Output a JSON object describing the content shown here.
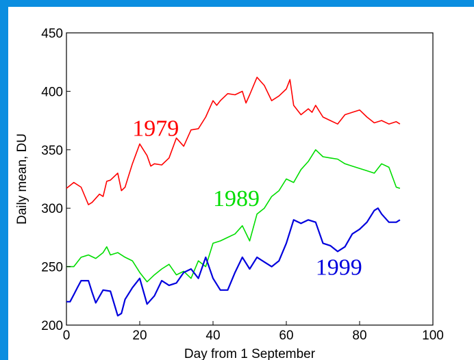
{
  "chart_data": {
    "type": "line",
    "title": "",
    "xlabel": "Day from 1 September",
    "ylabel": "Daily mean, DU",
    "xlim": [
      0,
      100
    ],
    "ylim": [
      200,
      450
    ],
    "xticks": [
      0,
      20,
      40,
      60,
      80,
      100
    ],
    "yticks": [
      200,
      250,
      300,
      350,
      400,
      450
    ],
    "grid": false,
    "legend": "none",
    "series": [
      {
        "name": "1979",
        "color": "#ff0000",
        "x": [
          0,
          2,
          4,
          6,
          7,
          9,
          10,
          11,
          12,
          14,
          15,
          16,
          17,
          18,
          20,
          21,
          22,
          23,
          24,
          26,
          28,
          30,
          32,
          34,
          36,
          38,
          40,
          41,
          42,
          44,
          46,
          48,
          49,
          50,
          52,
          54,
          56,
          58,
          60,
          61,
          62,
          64,
          66,
          67,
          68,
          70,
          72,
          74,
          76,
          78,
          80,
          82,
          84,
          86,
          88,
          90,
          91
        ],
        "y": [
          317,
          322,
          318,
          303,
          305,
          312,
          310,
          323,
          324,
          330,
          315,
          318,
          328,
          338,
          355,
          350,
          345,
          336,
          338,
          337,
          343,
          360,
          353,
          367,
          368,
          378,
          392,
          388,
          392,
          398,
          397,
          400,
          390,
          397,
          412,
          405,
          392,
          396,
          402,
          410,
          388,
          380,
          385,
          382,
          388,
          378,
          375,
          372,
          380,
          382,
          384,
          378,
          373,
          375,
          372,
          374,
          372
        ]
      },
      {
        "name": "1989",
        "color": "#00dd00",
        "x": [
          0,
          2,
          4,
          6,
          8,
          10,
          11,
          12,
          14,
          16,
          18,
          20,
          22,
          24,
          26,
          28,
          30,
          32,
          34,
          36,
          38,
          40,
          42,
          44,
          46,
          48,
          50,
          52,
          54,
          56,
          58,
          60,
          62,
          64,
          66,
          68,
          70,
          72,
          74,
          76,
          78,
          80,
          82,
          84,
          86,
          88,
          90,
          91
        ],
        "y": [
          250,
          250,
          258,
          260,
          257,
          262,
          267,
          260,
          262,
          258,
          255,
          245,
          237,
          243,
          248,
          252,
          243,
          246,
          240,
          255,
          250,
          270,
          272,
          275,
          278,
          285,
          272,
          295,
          300,
          310,
          315,
          325,
          322,
          333,
          340,
          350,
          344,
          343,
          342,
          338,
          336,
          334,
          332,
          330,
          338,
          335,
          318,
          317
        ]
      },
      {
        "name": "1999",
        "color": "#0000dd",
        "x": [
          0,
          1,
          2,
          3,
          4,
          6,
          7,
          8,
          10,
          12,
          14,
          15,
          16,
          18,
          20,
          22,
          24,
          26,
          28,
          30,
          32,
          34,
          36,
          38,
          40,
          42,
          44,
          46,
          48,
          50,
          52,
          54,
          56,
          58,
          60,
          62,
          64,
          66,
          68,
          70,
          72,
          74,
          76,
          78,
          80,
          82,
          84,
          85,
          86,
          88,
          90,
          91
        ],
        "y": [
          220,
          220,
          226,
          232,
          238,
          238,
          228,
          219,
          230,
          229,
          208,
          210,
          222,
          232,
          240,
          218,
          225,
          238,
          234,
          236,
          245,
          248,
          240,
          258,
          240,
          230,
          230,
          245,
          258,
          248,
          258,
          254,
          250,
          255,
          270,
          290,
          287,
          290,
          288,
          270,
          268,
          263,
          267,
          278,
          282,
          288,
          298,
          300,
          295,
          288,
          288,
          290
        ]
      }
    ],
    "annotations": [
      {
        "text": "1979",
        "x": 18,
        "y": 362,
        "color": "#ff0000"
      },
      {
        "text": "1989",
        "x": 40,
        "y": 302,
        "color": "#00dd00"
      },
      {
        "text": "1999",
        "x": 68,
        "y": 243,
        "color": "#0000dd"
      }
    ]
  }
}
